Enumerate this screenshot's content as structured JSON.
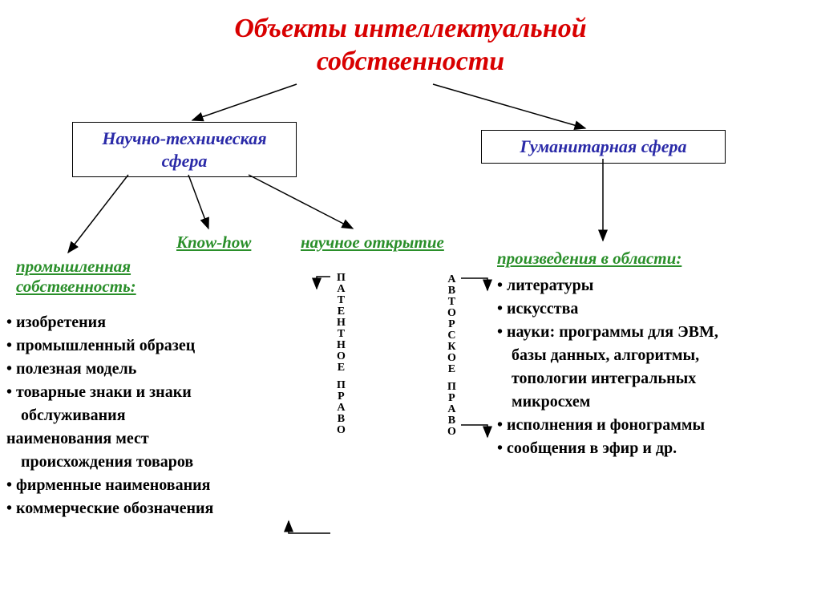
{
  "title_line1": "Объекты интеллектуальной",
  "title_line2": "собственности",
  "title_color": "#d80000",
  "title_fontsize": 34,
  "box_tech": "Научно-техническая\nсфера",
  "box_hum": "Гуманитарная сфера",
  "box_text_color": "#2a2aa8",
  "box_fontsize": 22,
  "green_color": "#2a8f2a",
  "head_fontsize": 21,
  "head_knowhow": "Know-how",
  "head_discovery": "научное открытие",
  "head_industrial1": "промышленная",
  "head_industrial2": "собственность:",
  "head_works": "произведения в области:",
  "body_fontsize": 20,
  "bullets_industrial": [
    "изобретения",
    "промышленный образец",
    "полезная модель",
    "товарные знаки и знаки",
    "обслуживания",
    "наименования мест",
    "происхождения товаров",
    "фирменные наименования",
    "коммерческие обозначения"
  ],
  "bullets_ind_nobullet": [
    4,
    6
  ],
  "bullets_ind_nopad": [
    5
  ],
  "bullets_works": [
    "литературы",
    "искусства",
    "науки: программы для ЭВМ,",
    "базы данных, алгоритмы,",
    "топологии интегральных",
    "микросхем",
    "исполнения и фонограммы",
    "сообщения в эфир и др."
  ],
  "bullets_works_nobullet": [
    3,
    4,
    5
  ],
  "vert_patent": "ПАТЕНТНОЕ ПРАВО",
  "vert_author": "АВТОРСКОЕ ПРАВО",
  "vert_fontsize": 14,
  "arrow_color": "#000000",
  "background_color": "#ffffff"
}
